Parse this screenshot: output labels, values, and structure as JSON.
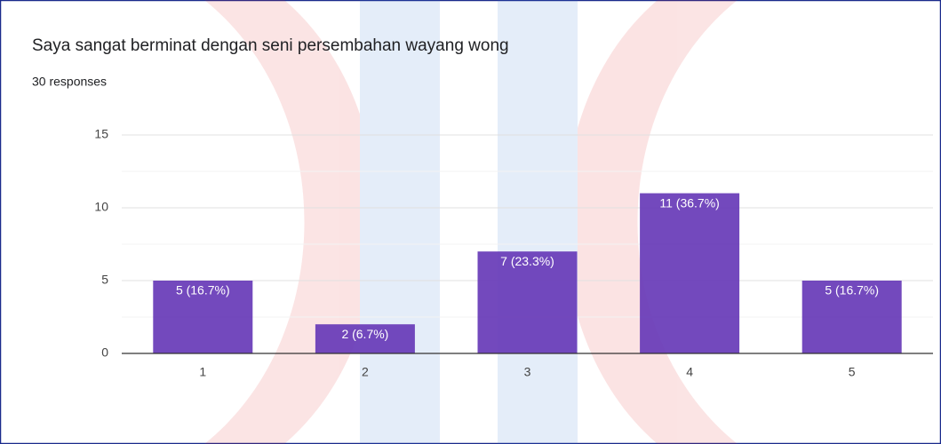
{
  "chart_data": {
    "type": "bar",
    "title": "Saya sangat berminat dengan seni persembahan wayang wong",
    "subtitle": "30 responses",
    "categories": [
      "1",
      "2",
      "3",
      "4",
      "5"
    ],
    "values": [
      5,
      2,
      7,
      11,
      5
    ],
    "value_labels": [
      "5 (16.7%)",
      "2 (6.7%)",
      "7 (23.3%)",
      "11 (36.7%)",
      "5 (16.7%)"
    ],
    "color": "#673ab7",
    "ylim": [
      0,
      15
    ],
    "yticks": [
      0,
      5,
      10,
      15
    ],
    "minor_yticks": [
      2.5,
      7.5,
      12.5
    ],
    "grid": true
  }
}
